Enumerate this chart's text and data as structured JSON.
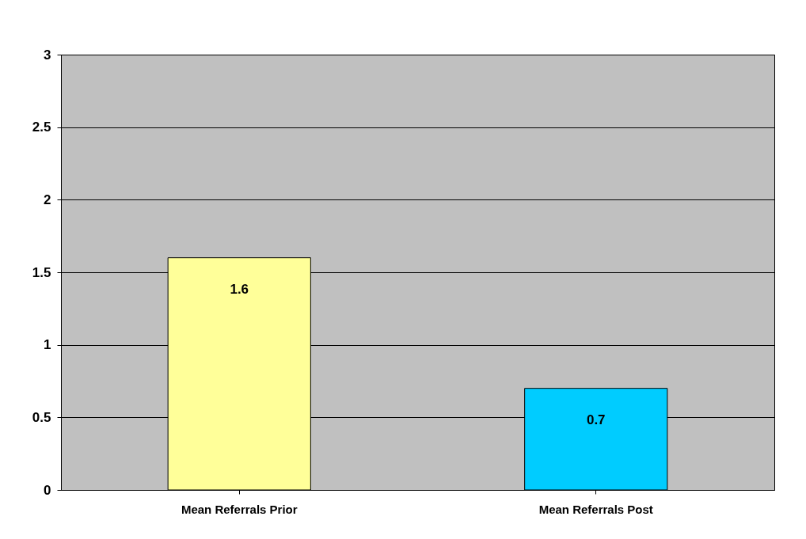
{
  "chart_data": {
    "type": "bar",
    "categories": [
      "Mean Referrals Prior",
      "Mean Referrals Post"
    ],
    "values": [
      1.6,
      0.7
    ],
    "colors": [
      "#ffff99",
      "#00ccff"
    ],
    "ylim": [
      0,
      3
    ],
    "yticks": [
      0,
      0.5,
      1,
      1.5,
      2,
      2.5,
      3
    ],
    "grid": "y",
    "data_labels": true
  }
}
